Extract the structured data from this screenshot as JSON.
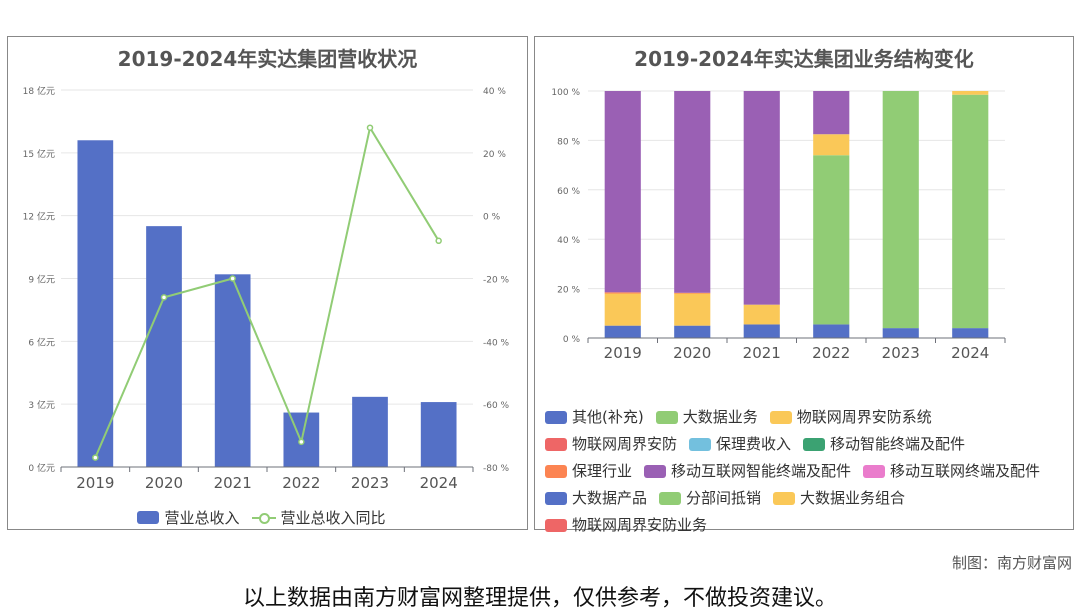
{
  "credit": "制图：南方财富网",
  "footer": "以上数据由南方财富网整理提供，仅供参考，不做投资建议。",
  "colors": {
    "blue": "#5470c6",
    "green": "#91cc75",
    "yellow": "#fac858",
    "red": "#ee6666",
    "cyan": "#73c0de",
    "teal": "#3ba272",
    "orange": "#fc8452",
    "purple": "#9a60b4",
    "pink": "#ea7ccc"
  },
  "chart_data": [
    {
      "type": "bar",
      "title": "2019-2024年实达集团营收状况",
      "categories": [
        "2019",
        "2020",
        "2021",
        "2022",
        "2023",
        "2024"
      ],
      "y_ticks": [
        "0 亿元",
        "3 亿元",
        "6 亿元",
        "9 亿元",
        "12 亿元",
        "15 亿元",
        "18 亿元"
      ],
      "y2_ticks": [
        "-80 %",
        "-60 %",
        "-40 %",
        "-20 %",
        "0 %",
        "20 %",
        "40 %"
      ],
      "ylim": [
        0,
        18
      ],
      "y2lim": [
        -80,
        40
      ],
      "series": [
        {
          "name": "营业总收入",
          "type": "bar",
          "axis": "left",
          "color": "#5470c6",
          "values": [
            15.6,
            11.5,
            9.2,
            2.6,
            3.35,
            3.1
          ]
        },
        {
          "name": "营业总收入同比",
          "type": "line",
          "axis": "right",
          "color": "#91cc75",
          "values": [
            -77,
            -26,
            -20,
            -72,
            28,
            -8
          ]
        }
      ],
      "legend_position": "bottom-center"
    },
    {
      "type": "bar",
      "stacked": true,
      "title": "2019-2024年实达集团业务结构变化",
      "categories": [
        "2019",
        "2020",
        "2021",
        "2022",
        "2023",
        "2024"
      ],
      "y_ticks": [
        "0 %",
        "20 %",
        "40 %",
        "60 %",
        "80 %",
        "100 %"
      ],
      "ylim": [
        0,
        100
      ],
      "series": [
        {
          "name": "其他(补充)",
          "color": "#5470c6",
          "values": [
            5,
            5,
            5.5,
            5.5,
            4,
            4
          ]
        },
        {
          "name": "大数据业务",
          "color": "#91cc75",
          "values": [
            0,
            0,
            0,
            68.5,
            96,
            94.5
          ]
        },
        {
          "name": "物联网周界安防系统",
          "color": "#fac858",
          "values": [
            13,
            13,
            8,
            8.5,
            0,
            1.5
          ]
        },
        {
          "name": "物联网周界安防",
          "color": "#ee6666",
          "values": [
            0,
            0,
            0,
            0,
            0,
            0
          ]
        },
        {
          "name": "保理费收入",
          "color": "#73c0de",
          "values": [
            0,
            0,
            0,
            0,
            0,
            0
          ]
        },
        {
          "name": "移动智能终端及配件",
          "color": "#3ba272",
          "values": [
            0,
            0,
            0,
            0,
            0,
            0
          ]
        },
        {
          "name": "保理行业",
          "color": "#fc8452",
          "values": [
            0.5,
            0.3,
            0,
            0,
            0,
            0
          ]
        },
        {
          "name": "移动互联网智能终端及配件",
          "color": "#9a60b4",
          "values": [
            81.5,
            81.7,
            86.5,
            17.5,
            0,
            0
          ]
        },
        {
          "name": "移动互联网终端及配件",
          "color": "#ea7ccc",
          "values": [
            0,
            0,
            0,
            0,
            0,
            0
          ]
        },
        {
          "name": "大数据产品",
          "color": "#5470c6",
          "values": [
            0,
            0,
            0,
            0,
            0,
            0
          ]
        },
        {
          "name": "分部间抵销",
          "color": "#91cc75",
          "values": [
            0,
            0,
            0,
            0,
            0,
            0
          ]
        },
        {
          "name": "大数据业务组合",
          "color": "#fac858",
          "values": [
            0,
            0,
            0,
            0,
            0,
            0
          ]
        },
        {
          "name": "物联网周界安防业务",
          "color": "#ee6666",
          "values": [
            0,
            0,
            0,
            0,
            0,
            0
          ]
        }
      ],
      "legend_position": "bottom"
    }
  ]
}
